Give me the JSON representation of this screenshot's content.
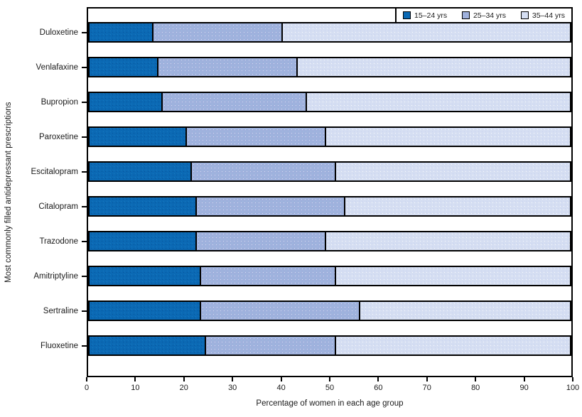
{
  "chart_data": {
    "type": "bar",
    "orientation": "horizontal",
    "stacked": true,
    "categories": [
      "Duloxetine",
      "Venlafaxine",
      "Bupropion",
      "Paroxetine",
      "Escitalopram",
      "Citalopram",
      "Trazodone",
      "Amitriptyline",
      "Sertraline",
      "Fluoxetine"
    ],
    "series": [
      {
        "name": "15–24 yrs",
        "color": "#0b69b4",
        "values": [
          13,
          14,
          15,
          20,
          21,
          22,
          22,
          23,
          23,
          24
        ]
      },
      {
        "name": "25–34 yrs",
        "color": "#9fb1dd",
        "values": [
          27,
          29,
          30,
          29,
          30,
          31,
          27,
          28,
          33,
          27
        ]
      },
      {
        "name": "35–44 yrs",
        "color": "#d5def2",
        "values": [
          60,
          57,
          55,
          51,
          49,
          47,
          51,
          49,
          44,
          49
        ]
      }
    ],
    "xlabel": "Percentage of women in each age group",
    "ylabel": "Most commonly filled antidepressant prescriptions",
    "xlim": [
      0,
      100
    ],
    "xticks": [
      0,
      10,
      20,
      30,
      40,
      50,
      60,
      70,
      80,
      90,
      100
    ],
    "grid": false,
    "legend_position": "top-right-inside"
  },
  "colors": {
    "axis": "#000000",
    "text": "#1a1a1a",
    "background": "#ffffff"
  }
}
